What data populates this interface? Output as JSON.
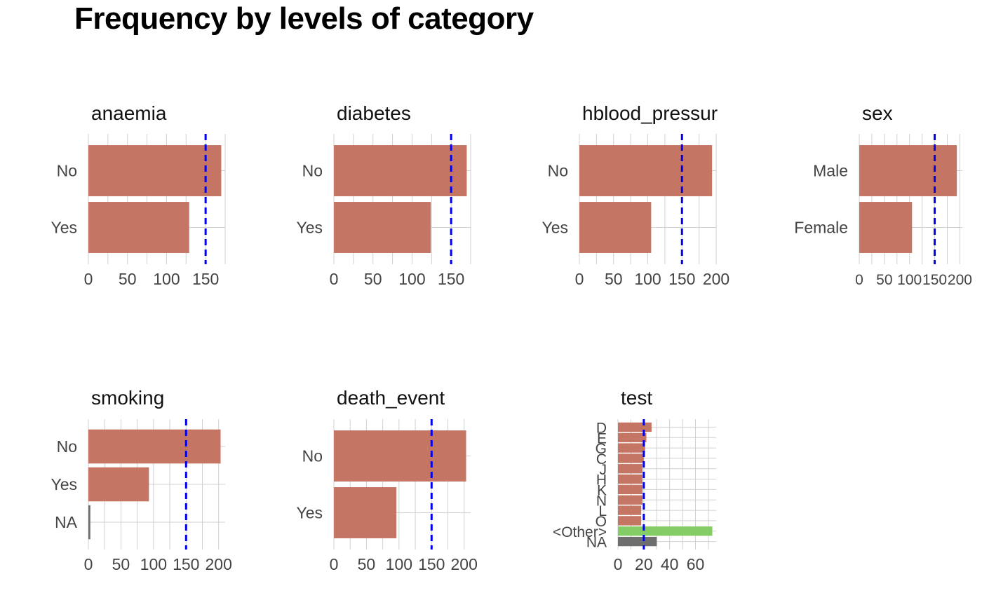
{
  "page_title": "Frequency by levels of category",
  "colors": {
    "bar": "#c47564",
    "na_bar": "#6e6e6e",
    "other_bar": "#84cc65",
    "reference_line": "#0000ee",
    "grid": "#d0d0d0"
  },
  "chart_data": [
    {
      "type": "bar",
      "orientation": "horizontal",
      "title": "anaemia",
      "categories": [
        "No",
        "Yes"
      ],
      "values": [
        170,
        129
      ],
      "category_kinds": [
        "level",
        "level"
      ],
      "reference_line": 150,
      "xlim": [
        0,
        175
      ],
      "xticks": [
        0,
        50,
        100,
        150
      ]
    },
    {
      "type": "bar",
      "orientation": "horizontal",
      "title": "diabetes",
      "categories": [
        "No",
        "Yes"
      ],
      "values": [
        170,
        124
      ],
      "category_kinds": [
        "level",
        "level"
      ],
      "reference_line": 150,
      "xlim": [
        0,
        175
      ],
      "xticks": [
        0,
        50,
        100,
        150
      ]
    },
    {
      "type": "bar",
      "orientation": "horizontal",
      "title": "hblood_pressur",
      "categories": [
        "No",
        "Yes"
      ],
      "values": [
        194,
        105
      ],
      "category_kinds": [
        "level",
        "level"
      ],
      "reference_line": 150,
      "xlim": [
        0,
        200
      ],
      "xticks": [
        0,
        50,
        100,
        150,
        200
      ]
    },
    {
      "type": "bar",
      "orientation": "horizontal",
      "title": "sex",
      "categories": [
        "Male",
        "Female"
      ],
      "values": [
        194,
        105
      ],
      "category_kinds": [
        "level",
        "level"
      ],
      "reference_line": 150,
      "xlim": [
        0,
        205
      ],
      "xticks": [
        0,
        50,
        100,
        150,
        200
      ]
    },
    {
      "type": "bar",
      "orientation": "horizontal",
      "title": "smoking",
      "categories": [
        "No",
        "Yes",
        "NA"
      ],
      "values": [
        203,
        93,
        3
      ],
      "category_kinds": [
        "level",
        "level",
        "na"
      ],
      "reference_line": 150,
      "xlim": [
        0,
        210
      ],
      "xticks": [
        0,
        50,
        100,
        150,
        200
      ]
    },
    {
      "type": "bar",
      "orientation": "horizontal",
      "title": "death_event",
      "categories": [
        "No",
        "Yes"
      ],
      "values": [
        203,
        96
      ],
      "category_kinds": [
        "level",
        "level"
      ],
      "reference_line": 150,
      "xlim": [
        0,
        210
      ],
      "xticks": [
        0,
        50,
        100,
        150,
        200
      ]
    },
    {
      "type": "bar",
      "orientation": "horizontal",
      "title": "test",
      "categories": [
        "D",
        "E",
        "G",
        "C",
        "J",
        "H",
        "K",
        "N",
        "L",
        "O",
        "<Other>",
        "NA"
      ],
      "values": [
        26,
        22,
        21,
        20,
        19,
        19,
        19,
        19,
        18,
        18,
        73,
        30
      ],
      "category_kinds": [
        "level",
        "level",
        "level",
        "level",
        "level",
        "level",
        "level",
        "level",
        "level",
        "level",
        "other",
        "na"
      ],
      "reference_line": 20,
      "xlim": [
        0,
        76
      ],
      "xticks": [
        0,
        20,
        40,
        60
      ]
    }
  ]
}
